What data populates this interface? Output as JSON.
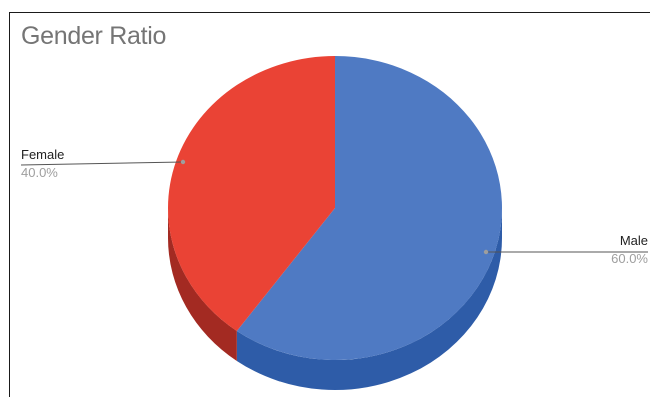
{
  "chart_data": {
    "type": "pie",
    "title": "Gender Ratio",
    "style": "3d",
    "slices": [
      {
        "name": "Male",
        "value": 60.0,
        "label": "60.0%",
        "color": "#4f7ac3",
        "side_color": "#2e5ca8"
      },
      {
        "name": "Female",
        "value": 40.0,
        "label": "40.0%",
        "color": "#ea4335",
        "side_color": "#a32a22"
      }
    ],
    "legend": "none",
    "labels": "outside-with-leader-lines"
  }
}
